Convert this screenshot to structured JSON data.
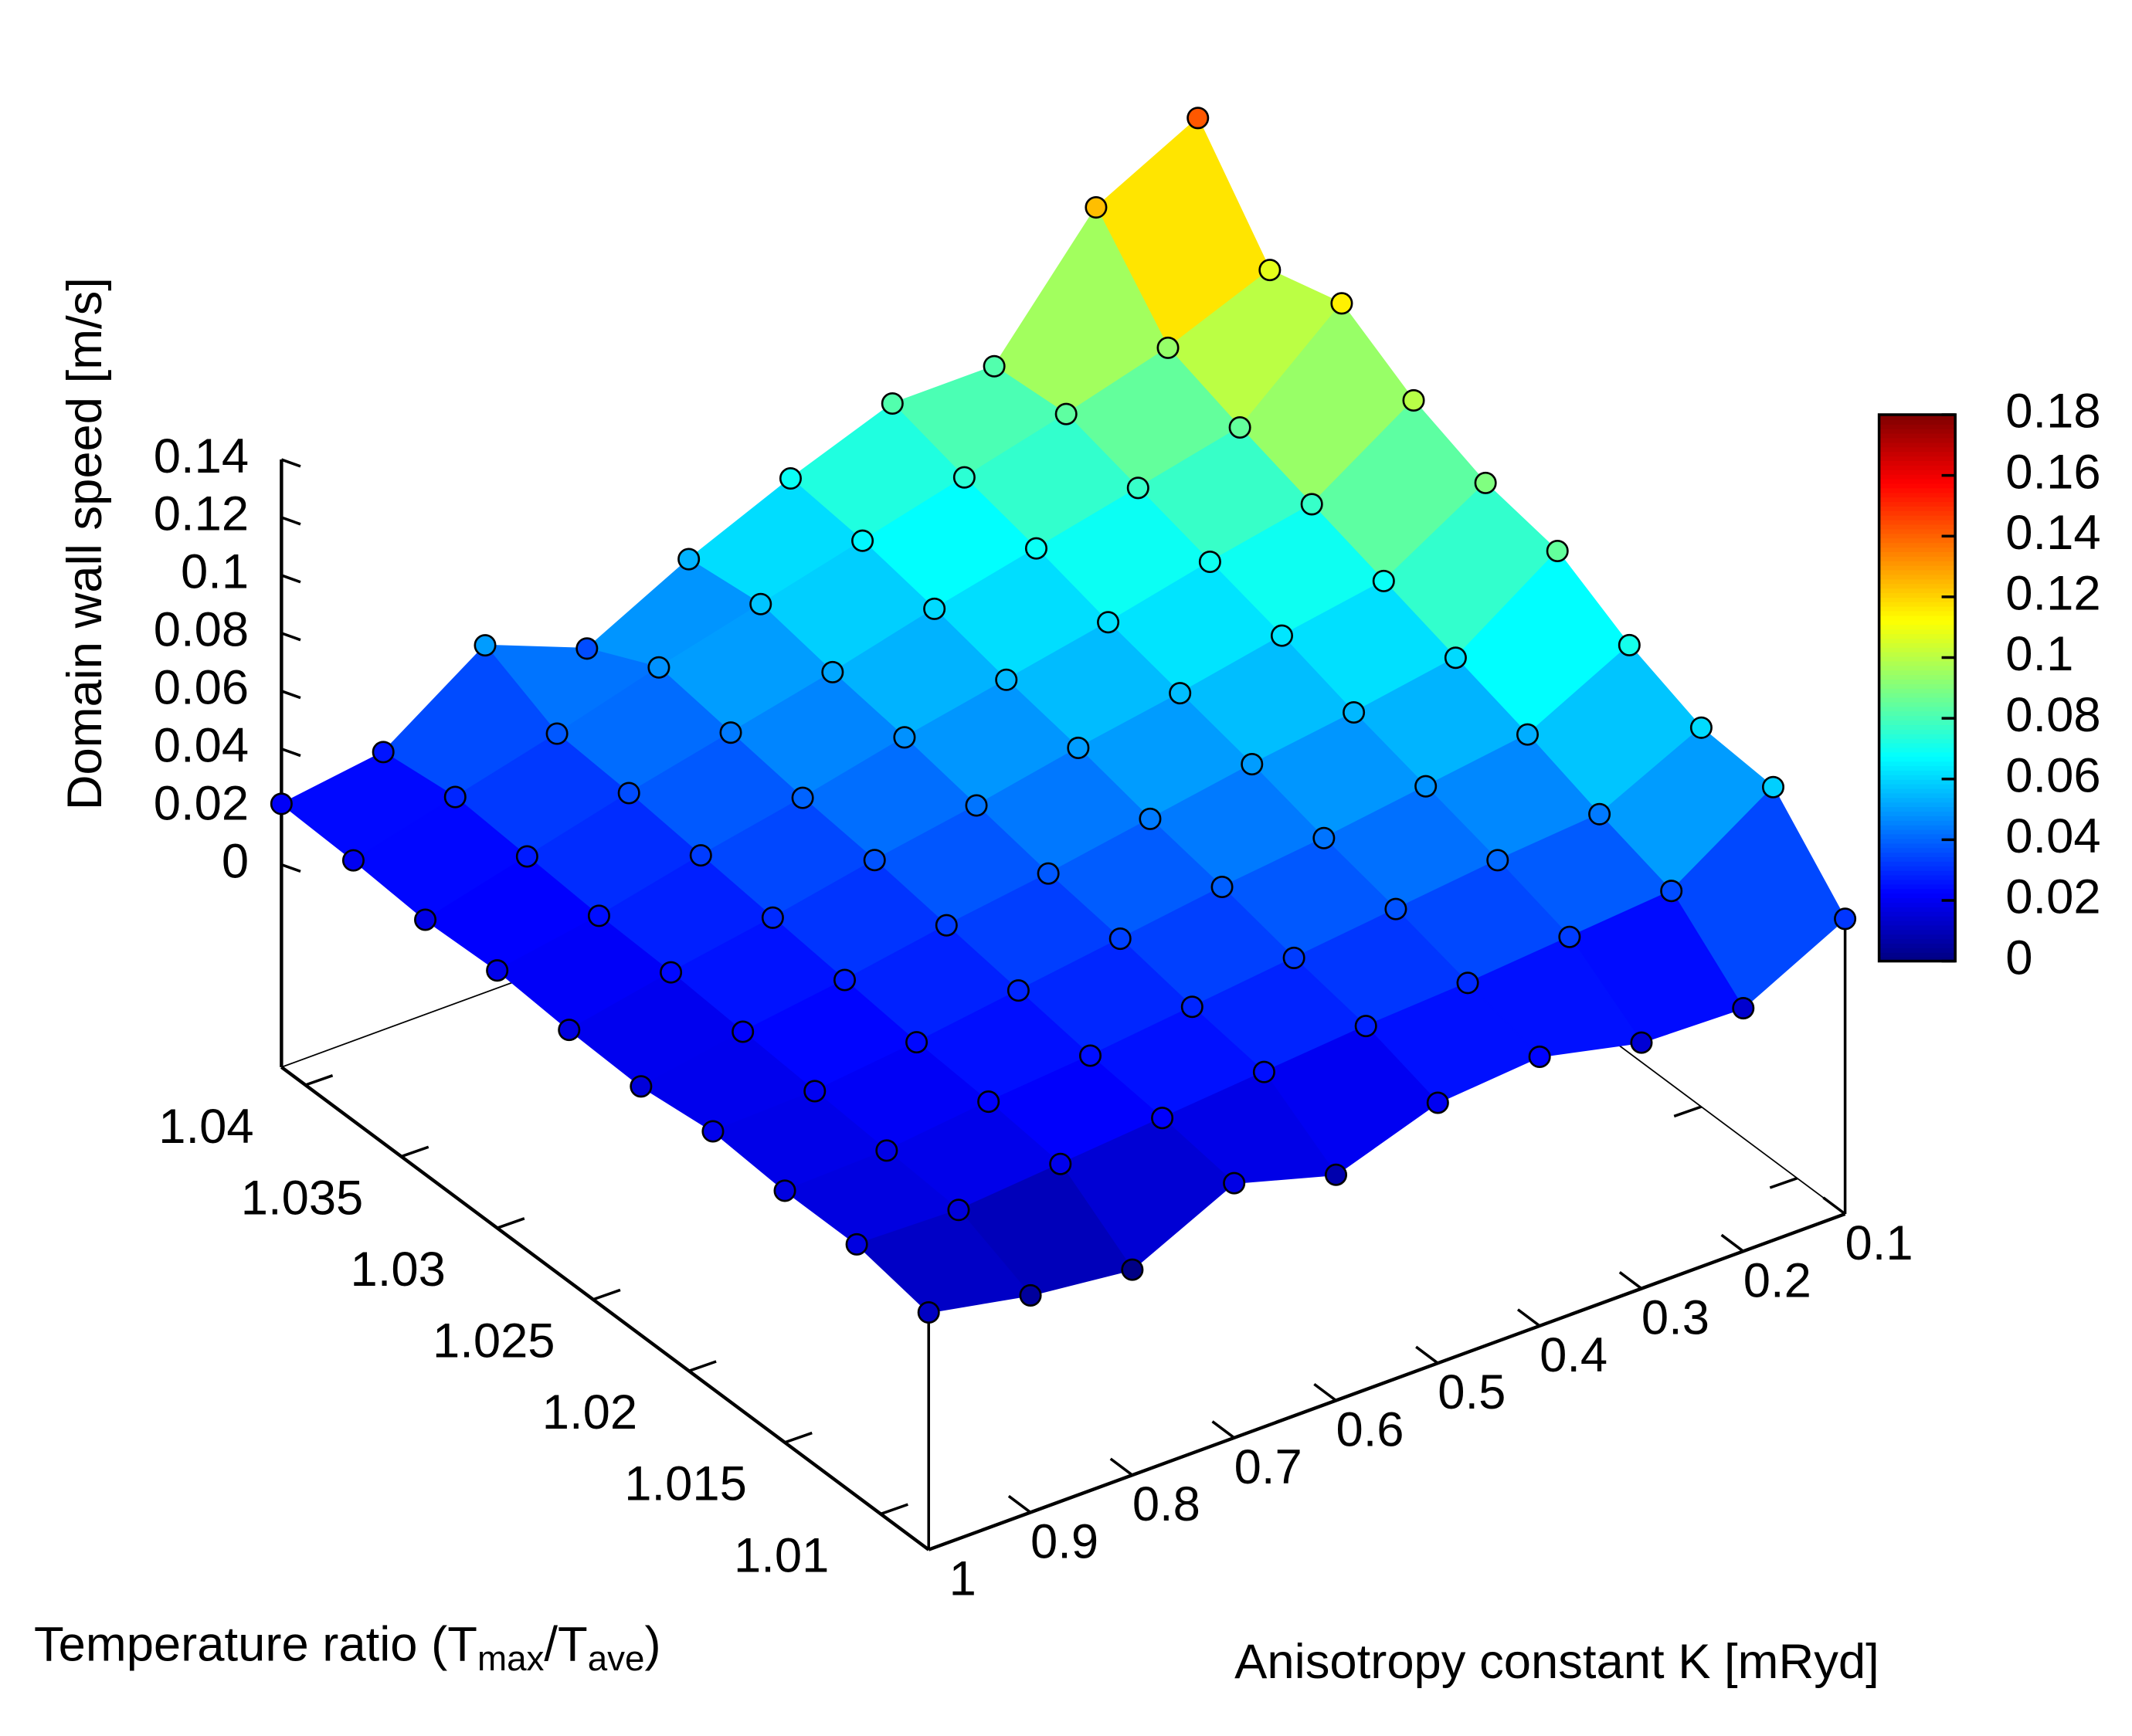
{
  "chart_data": {
    "type": "surface",
    "zlabel": "Domain wall speed [m/s]",
    "ylabel": [
      "Temperature ratio (T",
      "max",
      "/T",
      "ave",
      ")"
    ],
    "xlabel": "Anisotropy constant K [mRyd]",
    "x": [
      0.1,
      0.2,
      0.3,
      0.4,
      0.5,
      0.6,
      0.7,
      0.8,
      0.9,
      1
    ],
    "y": [
      1.0075,
      1.01125,
      1.015,
      1.01875,
      1.0225,
      1.02625,
      1.03,
      1.03375,
      1.0375,
      1.04125
    ],
    "z": [
      [
        0.032,
        0.014,
        0.015,
        0.023,
        0.02,
        0.008,
        0.018,
        0.001,
        0.005,
        0.012
      ],
      [
        0.059,
        0.036,
        0.033,
        0.03,
        0.028,
        0.025,
        0.022,
        0.019,
        0.016,
        0.017
      ],
      [
        0.061,
        0.044,
        0.041,
        0.037,
        0.033,
        0.029,
        0.025,
        0.022,
        0.018,
        0.017
      ],
      [
        0.071,
        0.053,
        0.048,
        0.043,
        0.039,
        0.034,
        0.029,
        0.024,
        0.02,
        0.019
      ],
      [
        0.085,
        0.061,
        0.055,
        0.05,
        0.044,
        0.038,
        0.033,
        0.027,
        0.022,
        0.016
      ],
      [
        0.09,
        0.069,
        0.063,
        0.056,
        0.05,
        0.043,
        0.037,
        0.03,
        0.024,
        0.017
      ],
      [
        0.1,
        0.077,
        0.07,
        0.062,
        0.055,
        0.048,
        0.04,
        0.033,
        0.025,
        0.019
      ],
      [
        0.115,
        0.085,
        0.077,
        0.069,
        0.061,
        0.052,
        0.044,
        0.036,
        0.027,
        0.018
      ],
      [
        0.108,
        0.094,
        0.084,
        0.075,
        0.066,
        0.057,
        0.048,
        0.038,
        0.029,
        0.02
      ],
      [
        0.142,
        0.124,
        0.082,
        0.082,
        0.069,
        0.054,
        0.036,
        0.05,
        0.026,
        0.021
      ]
    ],
    "xlim": [
      0.1,
      1
    ],
    "xticks": [
      0.1,
      0.2,
      0.3,
      0.4,
      0.5,
      0.6,
      0.7,
      0.8,
      0.9,
      1
    ],
    "ylim": [
      1.0075,
      1.04125
    ],
    "yticks": [
      1.01,
      1.015,
      1.02,
      1.025,
      1.03,
      1.035,
      1.04
    ],
    "zlim": [
      -0.07,
      0.14
    ],
    "zticks": [
      0,
      0.02,
      0.04,
      0.06,
      0.08,
      0.1,
      0.12,
      0.14
    ],
    "clim": [
      0,
      0.18
    ],
    "cticks": [
      0,
      0.02,
      0.04,
      0.06,
      0.08,
      0.1,
      0.12,
      0.14,
      0.16,
      0.18
    ],
    "colormap": "jet"
  }
}
